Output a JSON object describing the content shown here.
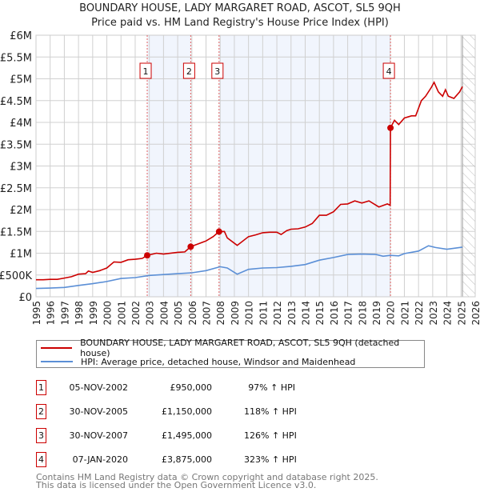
{
  "chart_data": {
    "type": "line",
    "title": "BOUNDARY HOUSE, LADY MARGARET ROAD, ASCOT, SL5 9QH",
    "subtitle": "Price paid vs. HM Land Registry's House Price Index (HPI)",
    "xlim": [
      1995,
      2026
    ],
    "ylim": [
      0,
      6000000
    ],
    "x_ticks": [
      "1995",
      "1996",
      "1997",
      "1998",
      "1999",
      "2000",
      "2001",
      "2002",
      "2003",
      "2004",
      "2005",
      "2006",
      "2007",
      "2008",
      "2009",
      "2010",
      "2011",
      "2012",
      "2013",
      "2014",
      "2015",
      "2016",
      "2017",
      "2018",
      "2019",
      "2020",
      "2021",
      "2022",
      "2023",
      "2024",
      "2025",
      "2026"
    ],
    "y_ticks": [
      {
        "value": 0,
        "label": "£0"
      },
      {
        "value": 500000,
        "label": "£500K"
      },
      {
        "value": 1000000,
        "label": "£1M"
      },
      {
        "value": 1500000,
        "label": "£1.5M"
      },
      {
        "value": 2000000,
        "label": "£2M"
      },
      {
        "value": 2500000,
        "label": "£2.5M"
      },
      {
        "value": 3000000,
        "label": "£3M"
      },
      {
        "value": 3500000,
        "label": "£3.5M"
      },
      {
        "value": 4000000,
        "label": "£4M"
      },
      {
        "value": 4500000,
        "label": "£4.5M"
      },
      {
        "value": 5000000,
        "label": "£5M"
      },
      {
        "value": 5500000,
        "label": "£5.5M"
      },
      {
        "value": 6000000,
        "label": "£6M"
      }
    ],
    "grid": true,
    "shaded_ranges": [
      [
        2002.85,
        2005.92
      ],
      [
        2007.92,
        2020.02
      ]
    ],
    "forecast_hatch_from": 2025.1,
    "series": [
      {
        "name": "BOUNDARY HOUSE, LADY MARGARET ROAD, ASCOT, SL5 9QH (detached house)",
        "color": "#cc0000",
        "x": [
          1995,
          1995.5,
          1996,
          1996.5,
          1997,
          1997.5,
          1998,
          1998.5,
          1998.7,
          1999,
          1999.5,
          2000,
          2000.5,
          2001,
          2001.5,
          2002,
          2002.5,
          2002.85,
          2003.5,
          2004,
          2005,
          2005.5,
          2005.92,
          2006.5,
          2007,
          2007.5,
          2007.92,
          2008.3,
          2008.5,
          2009.2,
          2010,
          2010.5,
          2011,
          2011.5,
          2012,
          2012.3,
          2012.7,
          2013,
          2013.5,
          2014,
          2014.5,
          2015,
          2015.5,
          2016,
          2016.5,
          2017,
          2017.5,
          2018,
          2018.5,
          2019.2,
          2019.8,
          2020.0,
          2020.02,
          2020.3,
          2020.6,
          2021,
          2021.5,
          2021.8,
          2022.2,
          2022.5,
          2022.9,
          2023.1,
          2023.4,
          2023.7,
          2023.9,
          2024.1,
          2024.5,
          2024.9,
          2025.1
        ],
        "y": [
          390000,
          390000,
          400000,
          400000,
          430000,
          460000,
          520000,
          530000,
          590000,
          560000,
          600000,
          660000,
          800000,
          790000,
          850000,
          860000,
          880000,
          950000,
          1000000,
          980000,
          1020000,
          1030000,
          1150000,
          1220000,
          1280000,
          1380000,
          1495000,
          1500000,
          1350000,
          1180000,
          1380000,
          1420000,
          1470000,
          1480000,
          1480000,
          1430000,
          1520000,
          1550000,
          1560000,
          1600000,
          1680000,
          1870000,
          1870000,
          1950000,
          2120000,
          2130000,
          2200000,
          2150000,
          2200000,
          2060000,
          2130000,
          2100000,
          3875000,
          4050000,
          3950000,
          4100000,
          4150000,
          4150000,
          4500000,
          4600000,
          4800000,
          4920000,
          4700000,
          4600000,
          4750000,
          4600000,
          4550000,
          4700000,
          4820000
        ]
      },
      {
        "name": "HPI: Average price, detached house, Windsor and Maidenhead",
        "color": "#5b8fd6",
        "x": [
          1995,
          1996,
          1997,
          1998,
          1999,
          2000,
          2001,
          2002,
          2003,
          2004,
          2005,
          2006,
          2007,
          2008,
          2008.5,
          2009.2,
          2010,
          2011,
          2012,
          2013,
          2014,
          2015,
          2016,
          2017,
          2018,
          2019,
          2019.5,
          2020,
          2020.6,
          2021,
          2022,
          2022.7,
          2023.2,
          2024,
          2025.1
        ],
        "y": [
          190000,
          200000,
          215000,
          260000,
          300000,
          350000,
          420000,
          440000,
          490000,
          510000,
          530000,
          550000,
          600000,
          690000,
          660000,
          520000,
          630000,
          660000,
          670000,
          700000,
          740000,
          840000,
          900000,
          970000,
          980000,
          970000,
          930000,
          950000,
          940000,
          990000,
          1050000,
          1170000,
          1130000,
          1090000,
          1140000
        ]
      }
    ],
    "sales": [
      {
        "label": "1",
        "x": 2002.85,
        "y": 950000
      },
      {
        "label": "2",
        "x": 2005.92,
        "y": 1150000
      },
      {
        "label": "3",
        "x": 2007.92,
        "y": 1495000
      },
      {
        "label": "4",
        "x": 2020.02,
        "y": 3875000
      }
    ]
  },
  "legend": {
    "property": "BOUNDARY HOUSE, LADY MARGARET ROAD, ASCOT, SL5 9QH (detached house)",
    "hpi": "HPI: Average price, detached house, Windsor and Maidenhead"
  },
  "transactions": [
    {
      "num": "1",
      "date": "05-NOV-2002",
      "price": "£950,000",
      "hpi": "97% ↑ HPI"
    },
    {
      "num": "2",
      "date": "30-NOV-2005",
      "price": "£1,150,000",
      "hpi": "118% ↑ HPI"
    },
    {
      "num": "3",
      "date": "30-NOV-2007",
      "price": "£1,495,000",
      "hpi": "126% ↑ HPI"
    },
    {
      "num": "4",
      "date": "07-JAN-2020",
      "price": "£3,875,000",
      "hpi": "323% ↑ HPI"
    }
  ],
  "footer": {
    "line1": "Contains HM Land Registry data © Crown copyright and database right 2025.",
    "line2": "This data is licensed under the Open Government Licence v3.0."
  }
}
